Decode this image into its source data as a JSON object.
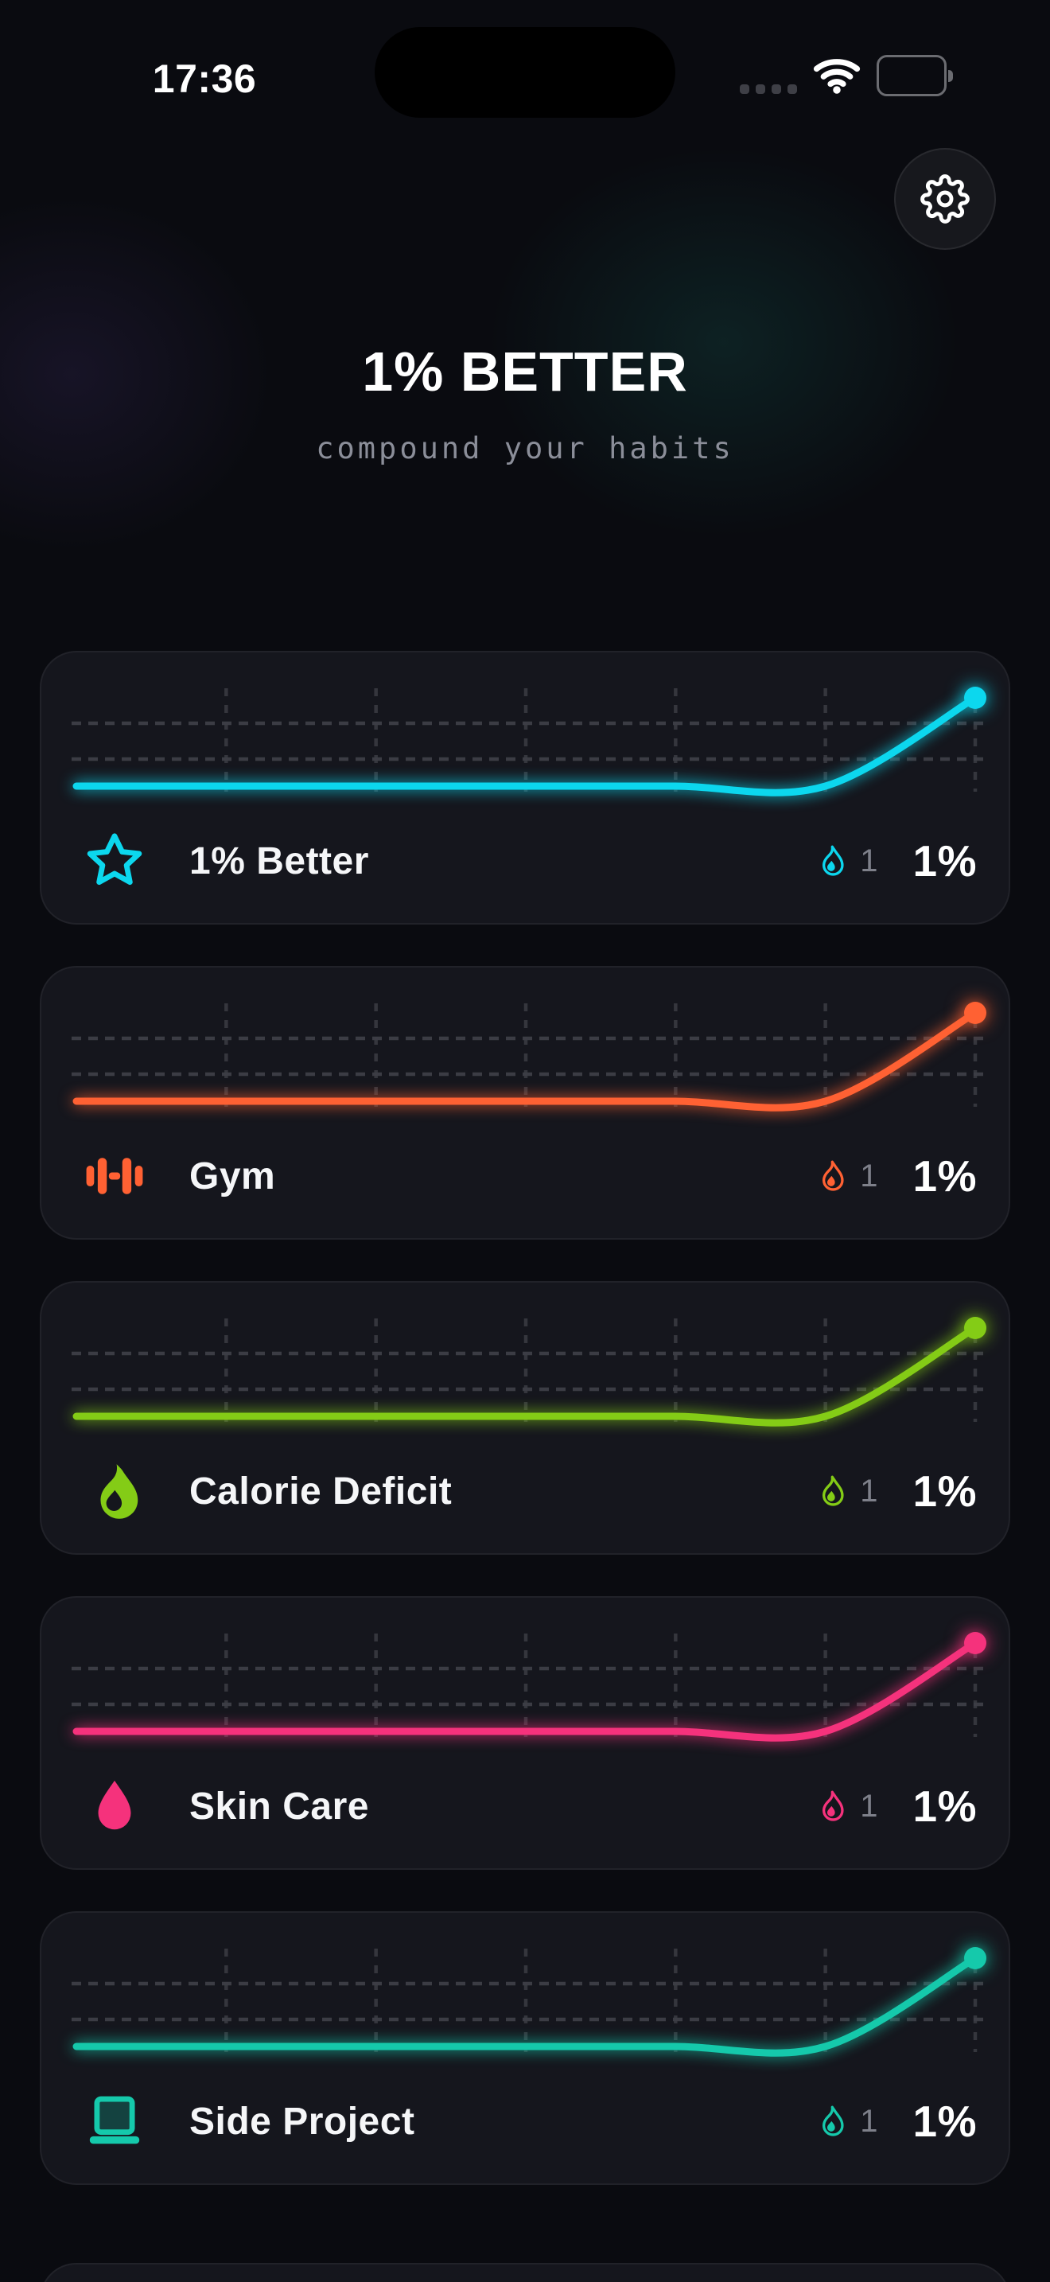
{
  "status_bar": {
    "time": "17:36",
    "icons": [
      "cellular-dots-icon",
      "wifi-icon",
      "battery-icon"
    ],
    "battery": "full",
    "signal_dots": 4
  },
  "header": {
    "title": "1% BETTER",
    "subtitle": "compound your habits"
  },
  "toolbar": {
    "settings_icon": "gear-icon"
  },
  "habits": [
    {
      "name": "1% Better",
      "icon": "star",
      "color": "#0cd7ee",
      "streak": "1",
      "growth": "1%"
    },
    {
      "name": "Gym",
      "icon": "dumbbell",
      "color": "#ff6133",
      "streak": "1",
      "growth": "1%"
    },
    {
      "name": "Calorie Deficit",
      "icon": "flame",
      "color": "#84cc16",
      "streak": "1",
      "growth": "1%"
    },
    {
      "name": "Skin Care",
      "icon": "droplet",
      "color": "#f5327c",
      "streak": "1",
      "growth": "1%"
    },
    {
      "name": "Side Project",
      "icon": "laptop",
      "color": "#15c9ab",
      "streak": "1",
      "growth": "1%"
    }
  ],
  "sixth_card_peek": true,
  "chart_data": {
    "type": "line",
    "x": [
      1,
      2,
      3,
      4,
      5,
      6,
      7
    ],
    "xlabel": "",
    "ylabel": "",
    "grid": "dashed",
    "legend": false,
    "note": "7-point sparkline per habit; flat at 1.00 then compounds +1% on last day; y-axis auto-scaled",
    "series": [
      {
        "name": "1% Better",
        "color": "#0cd7ee",
        "values": [
          1,
          1,
          1,
          1,
          1,
          1,
          1.01
        ]
      },
      {
        "name": "Gym",
        "color": "#ff6133",
        "values": [
          1,
          1,
          1,
          1,
          1,
          1,
          1.01
        ]
      },
      {
        "name": "Calorie Deficit",
        "color": "#84cc16",
        "values": [
          1,
          1,
          1,
          1,
          1,
          1,
          1.01
        ]
      },
      {
        "name": "Skin Care",
        "color": "#f5327c",
        "values": [
          1,
          1,
          1,
          1,
          1,
          1,
          1.01
        ]
      },
      {
        "name": "Side Project",
        "color": "#15c9ab",
        "values": [
          1,
          1,
          1,
          1,
          1,
          1,
          1.01
        ]
      }
    ]
  }
}
